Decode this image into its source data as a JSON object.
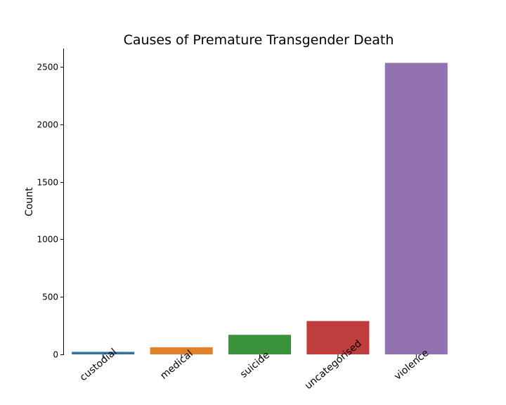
{
  "chart_data": {
    "type": "bar",
    "title": "Causes of Premature Transgender Death",
    "xlabel": "",
    "ylabel": "Count",
    "categories": [
      "custodial",
      "medical",
      "suicide",
      "uncategorised",
      "violence"
    ],
    "values": [
      22,
      62,
      170,
      290,
      2535
    ],
    "colors": [
      "#3274a1",
      "#e1812c",
      "#3a923a",
      "#c03d3e",
      "#9372b2"
    ],
    "ylim": [
      0,
      2660
    ],
    "yticks": [
      0,
      500,
      1000,
      1500,
      2000,
      2500
    ],
    "grid": false,
    "legend": "none"
  }
}
